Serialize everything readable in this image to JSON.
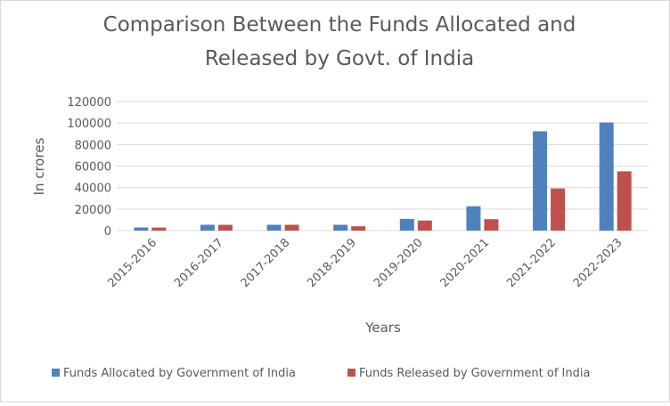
{
  "chart_data": {
    "type": "bar",
    "title": "Comparison Between the Funds Allocated and Released by Govt. of India",
    "title_lines": [
      "Comparison Between the Funds Allocated and",
      "Released by Govt. of India"
    ],
    "xlabel": "Years",
    "ylabel": "In crores",
    "ylim": [
      0,
      120000
    ],
    "yticks": [
      0,
      20000,
      40000,
      60000,
      80000,
      100000,
      120000
    ],
    "grid": true,
    "legend_position": "bottom",
    "categories": [
      "2015-2016",
      "2016-2017",
      "2017-2018",
      "2018-2019",
      "2019-2020",
      "2020-2021",
      "2021-2022",
      "2022-2023"
    ],
    "series": [
      {
        "name": "Funds Allocated by Government of India",
        "color": "#4f81bd",
        "values": [
          2900,
          5400,
          5400,
          5400,
          10900,
          22600,
          92300,
          100500
        ]
      },
      {
        "name": "Funds Released by Government of India",
        "color": "#c0504d",
        "values": [
          2800,
          5400,
          5400,
          4000,
          9400,
          10600,
          39200,
          55100
        ]
      }
    ]
  }
}
